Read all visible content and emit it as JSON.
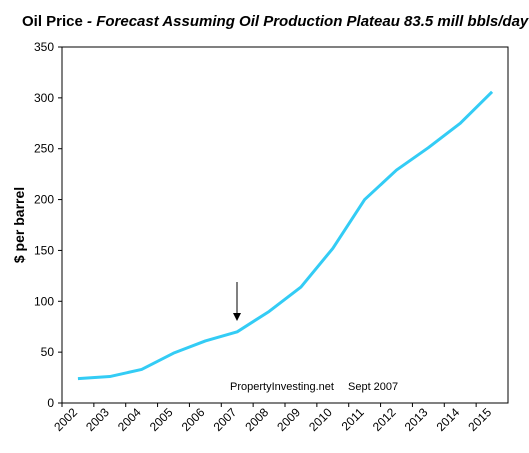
{
  "chart_data": {
    "type": "line",
    "title": "Oil Price",
    "subtitle": "- Forecast  Assuming Oil Production Plateau 83.5 mill bbls/day",
    "y_label": "$ per barrel",
    "annotations": [
      "PropertyInvesting.net",
      "Sept 2007"
    ],
    "categories": [
      "2002",
      "2003",
      "2004",
      "2005",
      "2006",
      "2007",
      "2008",
      "2009",
      "2010",
      "2011",
      "2012",
      "2013",
      "2014",
      "2015"
    ],
    "values": [
      24,
      26,
      33,
      49,
      61,
      70,
      90,
      114,
      152,
      200,
      229,
      251,
      275,
      306
    ],
    "color": "#33ccf5",
    "ylim": [
      0,
      350
    ],
    "yticks": [
      0,
      50,
      100,
      150,
      200,
      250,
      300,
      350
    ],
    "grid": false
  }
}
